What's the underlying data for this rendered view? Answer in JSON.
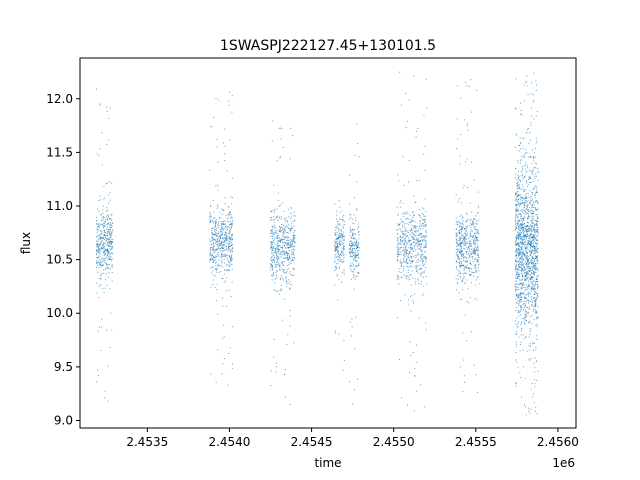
{
  "chart_data": {
    "type": "scatter",
    "title": "1SWASPJ222127.45+130101.5",
    "xlabel": "time",
    "ylabel": "flux",
    "x_offset_label": "1e6",
    "xlim": [
      2453090,
      2456110
    ],
    "ylim": [
      8.93,
      12.38
    ],
    "x_ticks": [
      2.4535,
      2.454,
      2.4545,
      2.455,
      2.4555,
      2.456
    ],
    "x_tick_labels": [
      "2.4535",
      "2.4540",
      "2.4545",
      "2.4550",
      "2.4555",
      "2.4560"
    ],
    "y_ticks": [
      9.0,
      9.5,
      10.0,
      10.5,
      11.0,
      11.5,
      12.0
    ],
    "y_tick_labels": [
      "9.0",
      "9.5",
      "10.0",
      "10.5",
      "11.0",
      "11.5",
      "12.0"
    ],
    "grid": false,
    "marker_color": "#1f77b4",
    "series": [
      {
        "clusters": [
          {
            "x_range": [
              2453190,
              2453290
            ],
            "center": 10.65,
            "spread": 0.16,
            "min": 9.1,
            "max": 12.15,
            "count": 420
          },
          {
            "x_range": [
              2453880,
              2454020
            ],
            "center": 10.65,
            "spread": 0.18,
            "min": 9.3,
            "max": 12.1,
            "count": 520
          },
          {
            "x_range": [
              2454250,
              2454400
            ],
            "center": 10.63,
            "spread": 0.16,
            "min": 9.1,
            "max": 11.8,
            "count": 520
          },
          {
            "x_range": [
              2454640,
              2454700
            ],
            "center": 10.62,
            "spread": 0.14,
            "min": 9.45,
            "max": 11.1,
            "count": 200
          },
          {
            "x_range": [
              2454730,
              2454790
            ],
            "center": 10.62,
            "spread": 0.14,
            "min": 9.1,
            "max": 11.85,
            "count": 200
          },
          {
            "x_range": [
              2455020,
              2455200
            ],
            "center": 10.63,
            "spread": 0.17,
            "min": 9.05,
            "max": 12.25,
            "count": 560
          },
          {
            "x_range": [
              2455380,
              2455520
            ],
            "center": 10.63,
            "spread": 0.17,
            "min": 9.2,
            "max": 12.2,
            "count": 520
          },
          {
            "x_range": [
              2455740,
              2455880
            ],
            "center": 10.6,
            "spread": 0.38,
            "min": 9.05,
            "max": 12.25,
            "count": 1500
          }
        ]
      }
    ]
  }
}
